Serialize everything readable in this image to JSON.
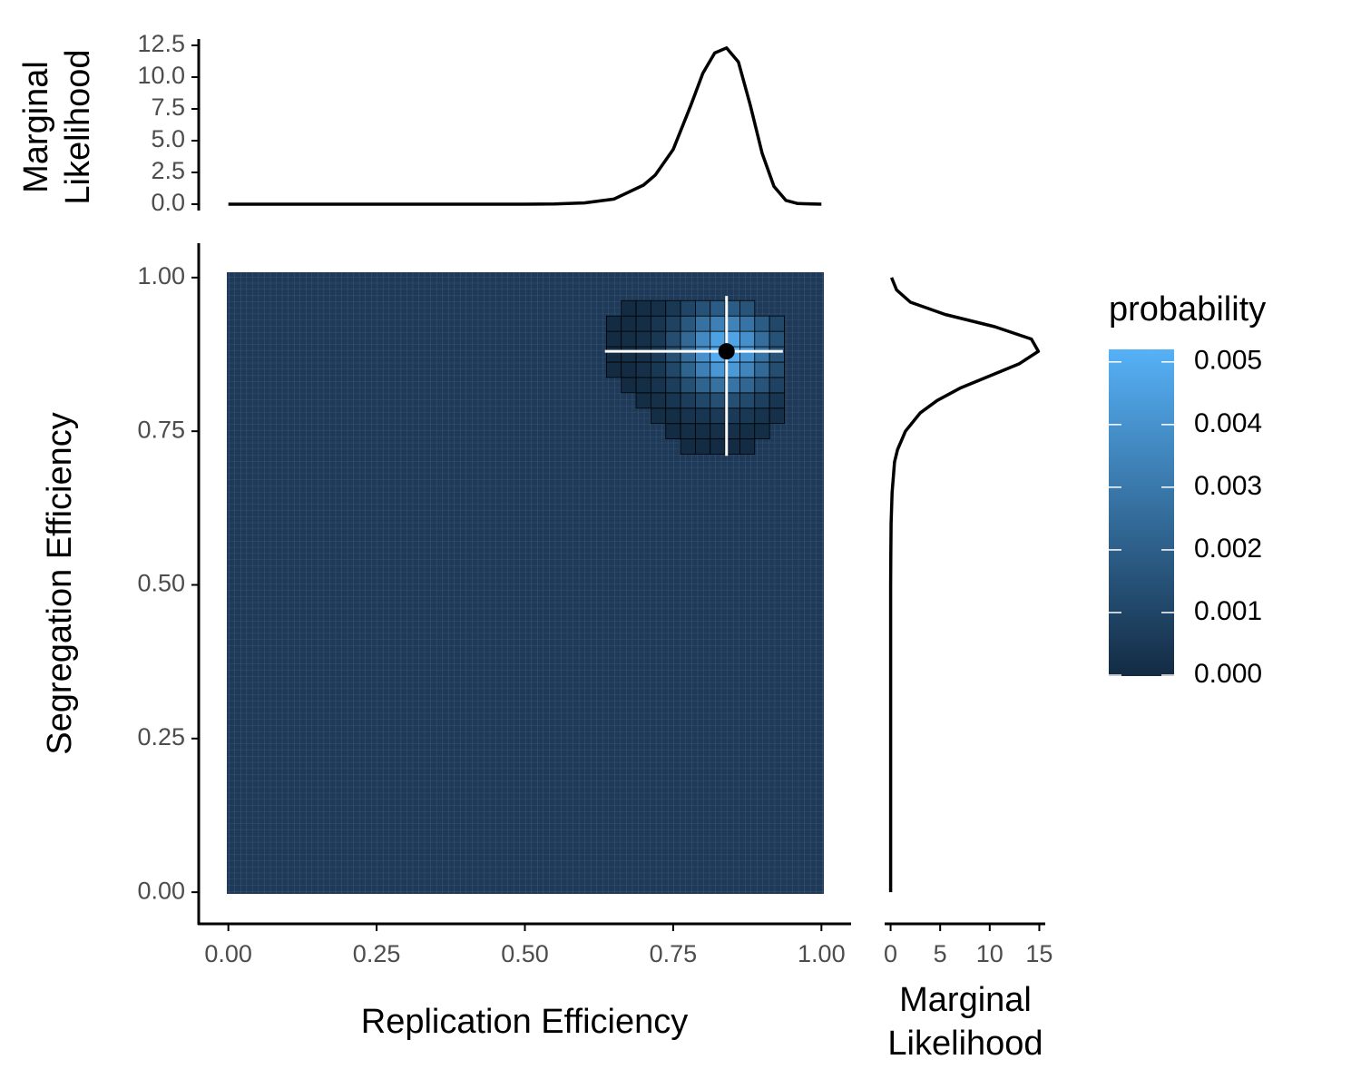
{
  "chart_data": [
    {
      "type": "heatmap",
      "xlabel": "Replication Efficiency",
      "ylabel": "Segregation Efficiency",
      "xlim": [
        -0.05,
        1.05
      ],
      "ylim": [
        -0.05,
        1.05
      ],
      "xticks": [
        {
          "value": 0,
          "label": "0.00"
        },
        {
          "value": 0.25,
          "label": "0.25"
        },
        {
          "value": 0.5,
          "label": "0.50"
        },
        {
          "value": 0.75,
          "label": "0.75"
        },
        {
          "value": 1,
          "label": "1.00"
        }
      ],
      "yticks": [
        {
          "value": 0,
          "label": "0.00"
        },
        {
          "value": 0.25,
          "label": "0.25"
        },
        {
          "value": 0.5,
          "label": "0.50"
        },
        {
          "value": 0.75,
          "label": "0.75"
        },
        {
          "value": 1,
          "label": "1.00"
        }
      ],
      "x": [
        0.65,
        0.675,
        0.7,
        0.725,
        0.75,
        0.775,
        0.8,
        0.825,
        0.85,
        0.875,
        0.9,
        0.925
      ],
      "y": [
        0.725,
        0.75,
        0.775,
        0.8,
        0.825,
        0.85,
        0.875,
        0.9,
        0.925,
        0.95
      ],
      "z": [
        [
          null,
          null,
          null,
          null,
          null,
          0,
          0,
          0,
          0,
          0,
          null,
          null
        ],
        [
          null,
          null,
          null,
          null,
          0,
          0.0001,
          0.0001,
          0.0002,
          0.0002,
          0.0001,
          0.0001,
          null
        ],
        [
          null,
          null,
          null,
          0.0001,
          0.0001,
          0.0003,
          0.0004,
          0.0006,
          0.0006,
          0.0005,
          0.0003,
          0.0002
        ],
        [
          null,
          null,
          0.0001,
          0.0002,
          0.0004,
          0.0007,
          0.0011,
          0.0014,
          0.0014,
          0.0012,
          0.0008,
          0.0004
        ],
        [
          null,
          0,
          0.0001,
          0.0003,
          0.0007,
          0.0014,
          0.0022,
          0.0027,
          0.0028,
          0.0023,
          0.0016,
          0.0009
        ],
        [
          0,
          0,
          0.0002,
          0.0005,
          0.0011,
          0.0022,
          0.0033,
          0.0042,
          0.0043,
          0.0035,
          0.0024,
          0.0013
        ],
        [
          0,
          0.0001,
          0.0002,
          0.0006,
          0.0014,
          0.0026,
          0.004,
          0.005,
          0.0051,
          0.0042,
          0.0028,
          0.0016
        ],
        [
          0,
          0.0001,
          0.0002,
          0.0005,
          0.0013,
          0.0024,
          0.0037,
          0.0046,
          0.0047,
          0.0039,
          0.0026,
          0.0015
        ],
        [
          0,
          0,
          0.0001,
          0.0004,
          0.0009,
          0.0017,
          0.0027,
          0.0033,
          0.0034,
          0.0028,
          0.0019,
          0.0011
        ],
        [
          null,
          0,
          0.0001,
          0.0002,
          0.0005,
          0.001,
          0.0015,
          0.0019,
          0.0019,
          0.0016,
          null,
          null
        ]
      ],
      "colorscale": [
        "#132b43",
        "#56b1f7"
      ],
      "zlim": [
        0,
        0.0052
      ],
      "legend_title": "probability",
      "legend_ticks": [
        {
          "value": 0,
          "label": "0.000"
        },
        {
          "value": 0.001,
          "label": "0.001"
        },
        {
          "value": 0.002,
          "label": "0.002"
        },
        {
          "value": 0.003,
          "label": "0.003"
        },
        {
          "value": 0.004,
          "label": "0.004"
        },
        {
          "value": 0.005,
          "label": "0.005"
        }
      ],
      "point": {
        "x": 0.84,
        "y": 0.88,
        "xrange": [
          0.635,
          0.935
        ],
        "yrange": [
          0.71,
          0.97
        ]
      }
    },
    {
      "type": "line",
      "ylabel_lines": [
        "Marginal",
        "Likelihood"
      ],
      "color": "#000000",
      "xlim": [
        -0.05,
        1.05
      ],
      "ylim": [
        -0.5,
        13
      ],
      "yticks": [
        {
          "value": 0,
          "label": "0.0"
        },
        {
          "value": 2.5,
          "label": "2.5"
        },
        {
          "value": 5,
          "label": "5.0"
        },
        {
          "value": 7.5,
          "label": "7.5"
        },
        {
          "value": 10,
          "label": "10.0"
        },
        12.5
      ],
      "x": [
        0,
        0.1,
        0.2,
        0.3,
        0.4,
        0.5,
        0.55,
        0.6,
        0.65,
        0.7,
        0.72,
        0.75,
        0.78,
        0.8,
        0.82,
        0.84,
        0.86,
        0.88,
        0.9,
        0.92,
        0.94,
        0.96,
        1
      ],
      "values": [
        0,
        0,
        0,
        0,
        0,
        0,
        0.02,
        0.1,
        0.4,
        1.5,
        2.3,
        4.3,
        7.8,
        10.3,
        11.9,
        12.3,
        11.2,
        7.8,
        4,
        1.4,
        0.3,
        0.05,
        0
      ]
    },
    {
      "type": "line",
      "orientation": "horizontal",
      "xlabel_lines": [
        "Marginal",
        "Likelihood"
      ],
      "color": "#000000",
      "xlim": [
        -0.6,
        15.6
      ],
      "ylim": [
        -0.05,
        1.05
      ],
      "xticks": [
        0,
        5,
        10,
        15
      ],
      "y": [
        0,
        0.1,
        0.2,
        0.3,
        0.4,
        0.5,
        0.55,
        0.6,
        0.65,
        0.7,
        0.72,
        0.75,
        0.78,
        0.8,
        0.82,
        0.84,
        0.86,
        0.88,
        0.9,
        0.92,
        0.94,
        0.96,
        0.98,
        1
      ],
      "values": [
        0,
        0,
        0,
        0,
        0,
        0,
        0.02,
        0.05,
        0.15,
        0.4,
        0.7,
        1.5,
        3,
        4.7,
        7,
        10,
        13,
        14.9,
        14.2,
        10.5,
        5.5,
        2,
        0.6,
        0.1
      ]
    }
  ]
}
